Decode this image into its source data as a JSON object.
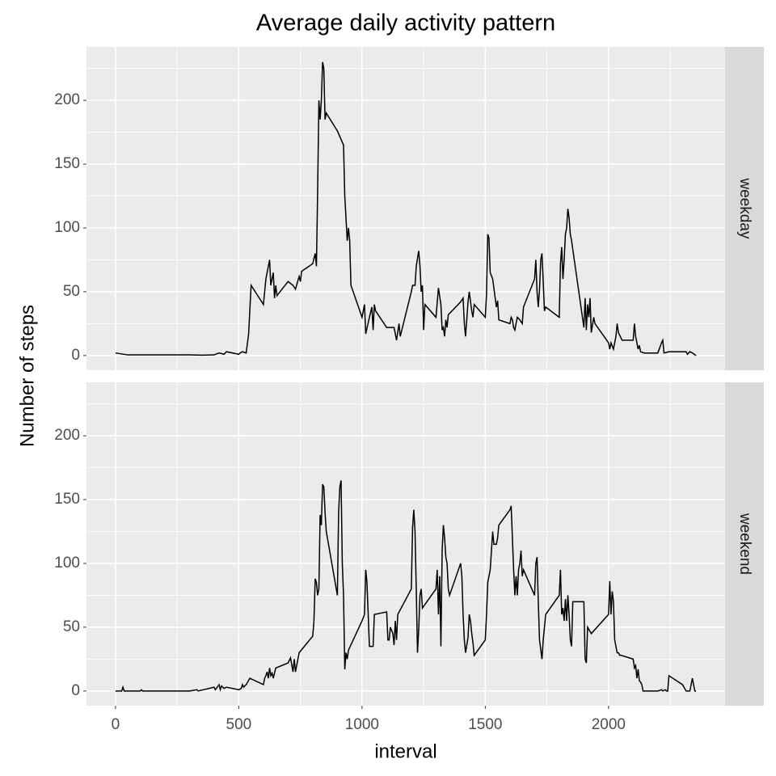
{
  "chart_data": {
    "type": "line",
    "title": "Average daily activity pattern",
    "x_label": "interval",
    "y_label": "Number of steps",
    "facet": true,
    "grid": true,
    "xlim": [
      -117.75,
      2472.75
    ],
    "xticks": [
      0,
      500,
      1000,
      1500,
      2000
    ],
    "ylim": [
      -11.5,
      241.9
    ],
    "yticks": [
      0,
      50,
      100,
      150,
      200
    ],
    "series": [
      {
        "name": "weekday",
        "color": "#000000",
        "x": [
          0,
          50,
          100,
          150,
          200,
          250,
          300,
          350,
          400,
          420,
          440,
          450,
          500,
          505,
          515,
          530,
          540,
          550,
          600,
          610,
          625,
          630,
          640,
          645,
          650,
          655,
          700,
          720,
          730,
          745,
          750,
          755,
          800,
          810,
          815,
          820,
          825,
          830,
          835,
          840,
          845,
          850,
          855,
          900,
          925,
          930,
          940,
          945,
          950,
          955,
          1000,
          1010,
          1015,
          1030,
          1040,
          1045,
          1050,
          1055,
          1100,
          1115,
          1130,
          1140,
          1150,
          1155,
          1200,
          1205,
          1210,
          1215,
          1220,
          1230,
          1235,
          1240,
          1245,
          1250,
          1255,
          1300,
          1310,
          1320,
          1325,
          1330,
          1335,
          1340,
          1345,
          1350,
          1400,
          1410,
          1415,
          1420,
          1430,
          1435,
          1445,
          1450,
          1455,
          1500,
          1505,
          1510,
          1515,
          1520,
          1530,
          1545,
          1550,
          1555,
          1600,
          1605,
          1610,
          1615,
          1620,
          1630,
          1640,
          1650,
          1655,
          1700,
          1705,
          1710,
          1715,
          1720,
          1725,
          1730,
          1735,
          1740,
          1745,
          1800,
          1805,
          1810,
          1815,
          1820,
          1825,
          1830,
          1835,
          1840,
          1845,
          1850,
          1900,
          1905,
          1910,
          1915,
          1920,
          1925,
          1930,
          1940,
          1945,
          2000,
          2005,
          2010,
          2020,
          2025,
          2030,
          2035,
          2040,
          2045,
          2050,
          2055,
          2100,
          2105,
          2110,
          2115,
          2120,
          2125,
          2130,
          2145,
          2200,
          2215,
          2220,
          2225,
          2245,
          2300,
          2315,
          2320,
          2330,
          2340,
          2355
        ],
        "values": [
          2,
          0.5,
          0.5,
          0.5,
          0.5,
          0.5,
          0.5,
          0.3,
          0.5,
          2,
          1,
          3,
          1,
          2,
          3,
          2,
          17,
          55,
          40,
          60,
          75,
          55,
          65,
          45,
          55,
          47,
          58,
          55,
          52,
          62,
          58,
          66,
          72,
          80,
          70,
          130,
          200,
          185,
          200,
          230,
          225,
          185,
          190,
          176,
          165,
          125,
          90,
          100,
          90,
          55,
          30,
          40,
          17,
          30,
          38,
          20,
          40,
          35,
          22,
          22,
          22,
          12,
          25,
          15,
          50,
          55,
          55,
          55,
          70,
          82,
          70,
          50,
          55,
          20,
          40,
          30,
          53,
          40,
          20,
          22,
          15,
          28,
          22,
          32,
          42,
          45,
          25,
          15,
          42,
          50,
          35,
          30,
          40,
          30,
          48,
          95,
          92,
          65,
          60,
          38,
          43,
          28,
          25,
          30,
          28,
          22,
          20,
          30,
          28,
          25,
          38,
          60,
          75,
          50,
          38,
          52,
          75,
          80,
          58,
          35,
          38,
          30,
          72,
          85,
          60,
          75,
          95,
          100,
          115,
          108,
          95,
          90,
          22,
          45,
          20,
          40,
          30,
          45,
          18,
          30,
          25,
          10,
          5,
          10,
          5,
          10,
          15,
          25,
          18,
          16,
          14,
          12,
          12,
          25,
          15,
          10,
          5,
          8,
          3,
          2,
          2,
          10,
          12,
          2,
          3,
          3,
          3,
          1,
          3,
          2,
          0
        ]
      },
      {
        "name": "weekend",
        "color": "#000000",
        "x": [
          0,
          25,
          30,
          35,
          100,
          105,
          110,
          200,
          300,
          330,
          335,
          400,
          405,
          420,
          425,
          430,
          440,
          450,
          500,
          510,
          515,
          520,
          530,
          545,
          600,
          605,
          610,
          615,
          620,
          625,
          630,
          635,
          640,
          650,
          700,
          710,
          720,
          725,
          730,
          745,
          800,
          805,
          810,
          815,
          820,
          825,
          830,
          835,
          840,
          845,
          850,
          855,
          900,
          905,
          910,
          915,
          920,
          925,
          930,
          935,
          940,
          945,
          1000,
          1010,
          1015,
          1020,
          1025,
          1030,
          1045,
          1050,
          1100,
          1105,
          1110,
          1115,
          1125,
          1130,
          1135,
          1140,
          1145,
          1200,
          1205,
          1210,
          1215,
          1220,
          1225,
          1230,
          1235,
          1240,
          1245,
          1300,
          1305,
          1310,
          1315,
          1320,
          1325,
          1330,
          1335,
          1340,
          1345,
          1350,
          1355,
          1400,
          1405,
          1410,
          1415,
          1420,
          1430,
          1435,
          1440,
          1445,
          1450,
          1455,
          1500,
          1505,
          1510,
          1520,
          1530,
          1535,
          1545,
          1550,
          1555,
          1600,
          1605,
          1610,
          1615,
          1620,
          1625,
          1630,
          1635,
          1640,
          1645,
          1650,
          1655,
          1700,
          1705,
          1710,
          1715,
          1720,
          1730,
          1735,
          1745,
          1800,
          1805,
          1810,
          1815,
          1820,
          1825,
          1830,
          1835,
          1840,
          1845,
          1850,
          1855,
          1900,
          1905,
          1910,
          1915,
          1930,
          2000,
          2005,
          2010,
          2015,
          2020,
          2025,
          2030,
          2035,
          2040,
          2045,
          2050,
          2100,
          2105,
          2110,
          2115,
          2120,
          2125,
          2130,
          2135,
          2140,
          2200,
          2215,
          2220,
          2230,
          2235,
          2240,
          2245,
          2300,
          2315,
          2330,
          2340,
          2345,
          2350,
          2355
        ],
        "values": [
          0,
          0,
          3,
          0,
          0,
          1,
          0,
          0,
          0,
          1,
          0,
          3,
          1,
          5,
          1,
          4,
          2,
          3,
          1,
          2,
          5,
          3,
          5,
          10,
          5,
          10,
          12,
          15,
          10,
          18,
          12,
          14,
          10,
          18,
          22,
          26,
          15,
          25,
          15,
          30,
          43,
          55,
          88,
          85,
          75,
          80,
          138,
          130,
          162,
          160,
          140,
          125,
          75,
          140,
          160,
          165,
          100,
          75,
          17,
          30,
          25,
          32,
          55,
          60,
          95,
          85,
          60,
          35,
          35,
          60,
          62,
          40,
          40,
          50,
          45,
          36,
          55,
          40,
          60,
          80,
          128,
          142,
          125,
          80,
          30,
          48,
          75,
          80,
          65,
          80,
          95,
          60,
          90,
          35,
          110,
          130,
          120,
          105,
          100,
          80,
          75,
          100,
          90,
          60,
          40,
          30,
          42,
          60,
          55,
          45,
          38,
          28,
          40,
          60,
          85,
          95,
          125,
          115,
          115,
          120,
          130,
          142,
          145,
          120,
          95,
          75,
          90,
          75,
          95,
          100,
          110,
          90,
          95,
          75,
          100,
          105,
          70,
          40,
          25,
          40,
          60,
          75,
          95,
          60,
          65,
          55,
          72,
          55,
          75,
          60,
          40,
          35,
          70,
          70,
          25,
          22,
          50,
          45,
          60,
          86,
          60,
          78,
          70,
          40,
          35,
          30,
          30,
          28,
          28,
          25,
          18,
          20,
          10,
          17,
          8,
          7,
          5,
          0,
          0,
          1,
          0,
          1,
          0,
          0,
          12,
          5,
          0,
          0,
          10,
          5,
          0,
          0
        ]
      }
    ]
  }
}
